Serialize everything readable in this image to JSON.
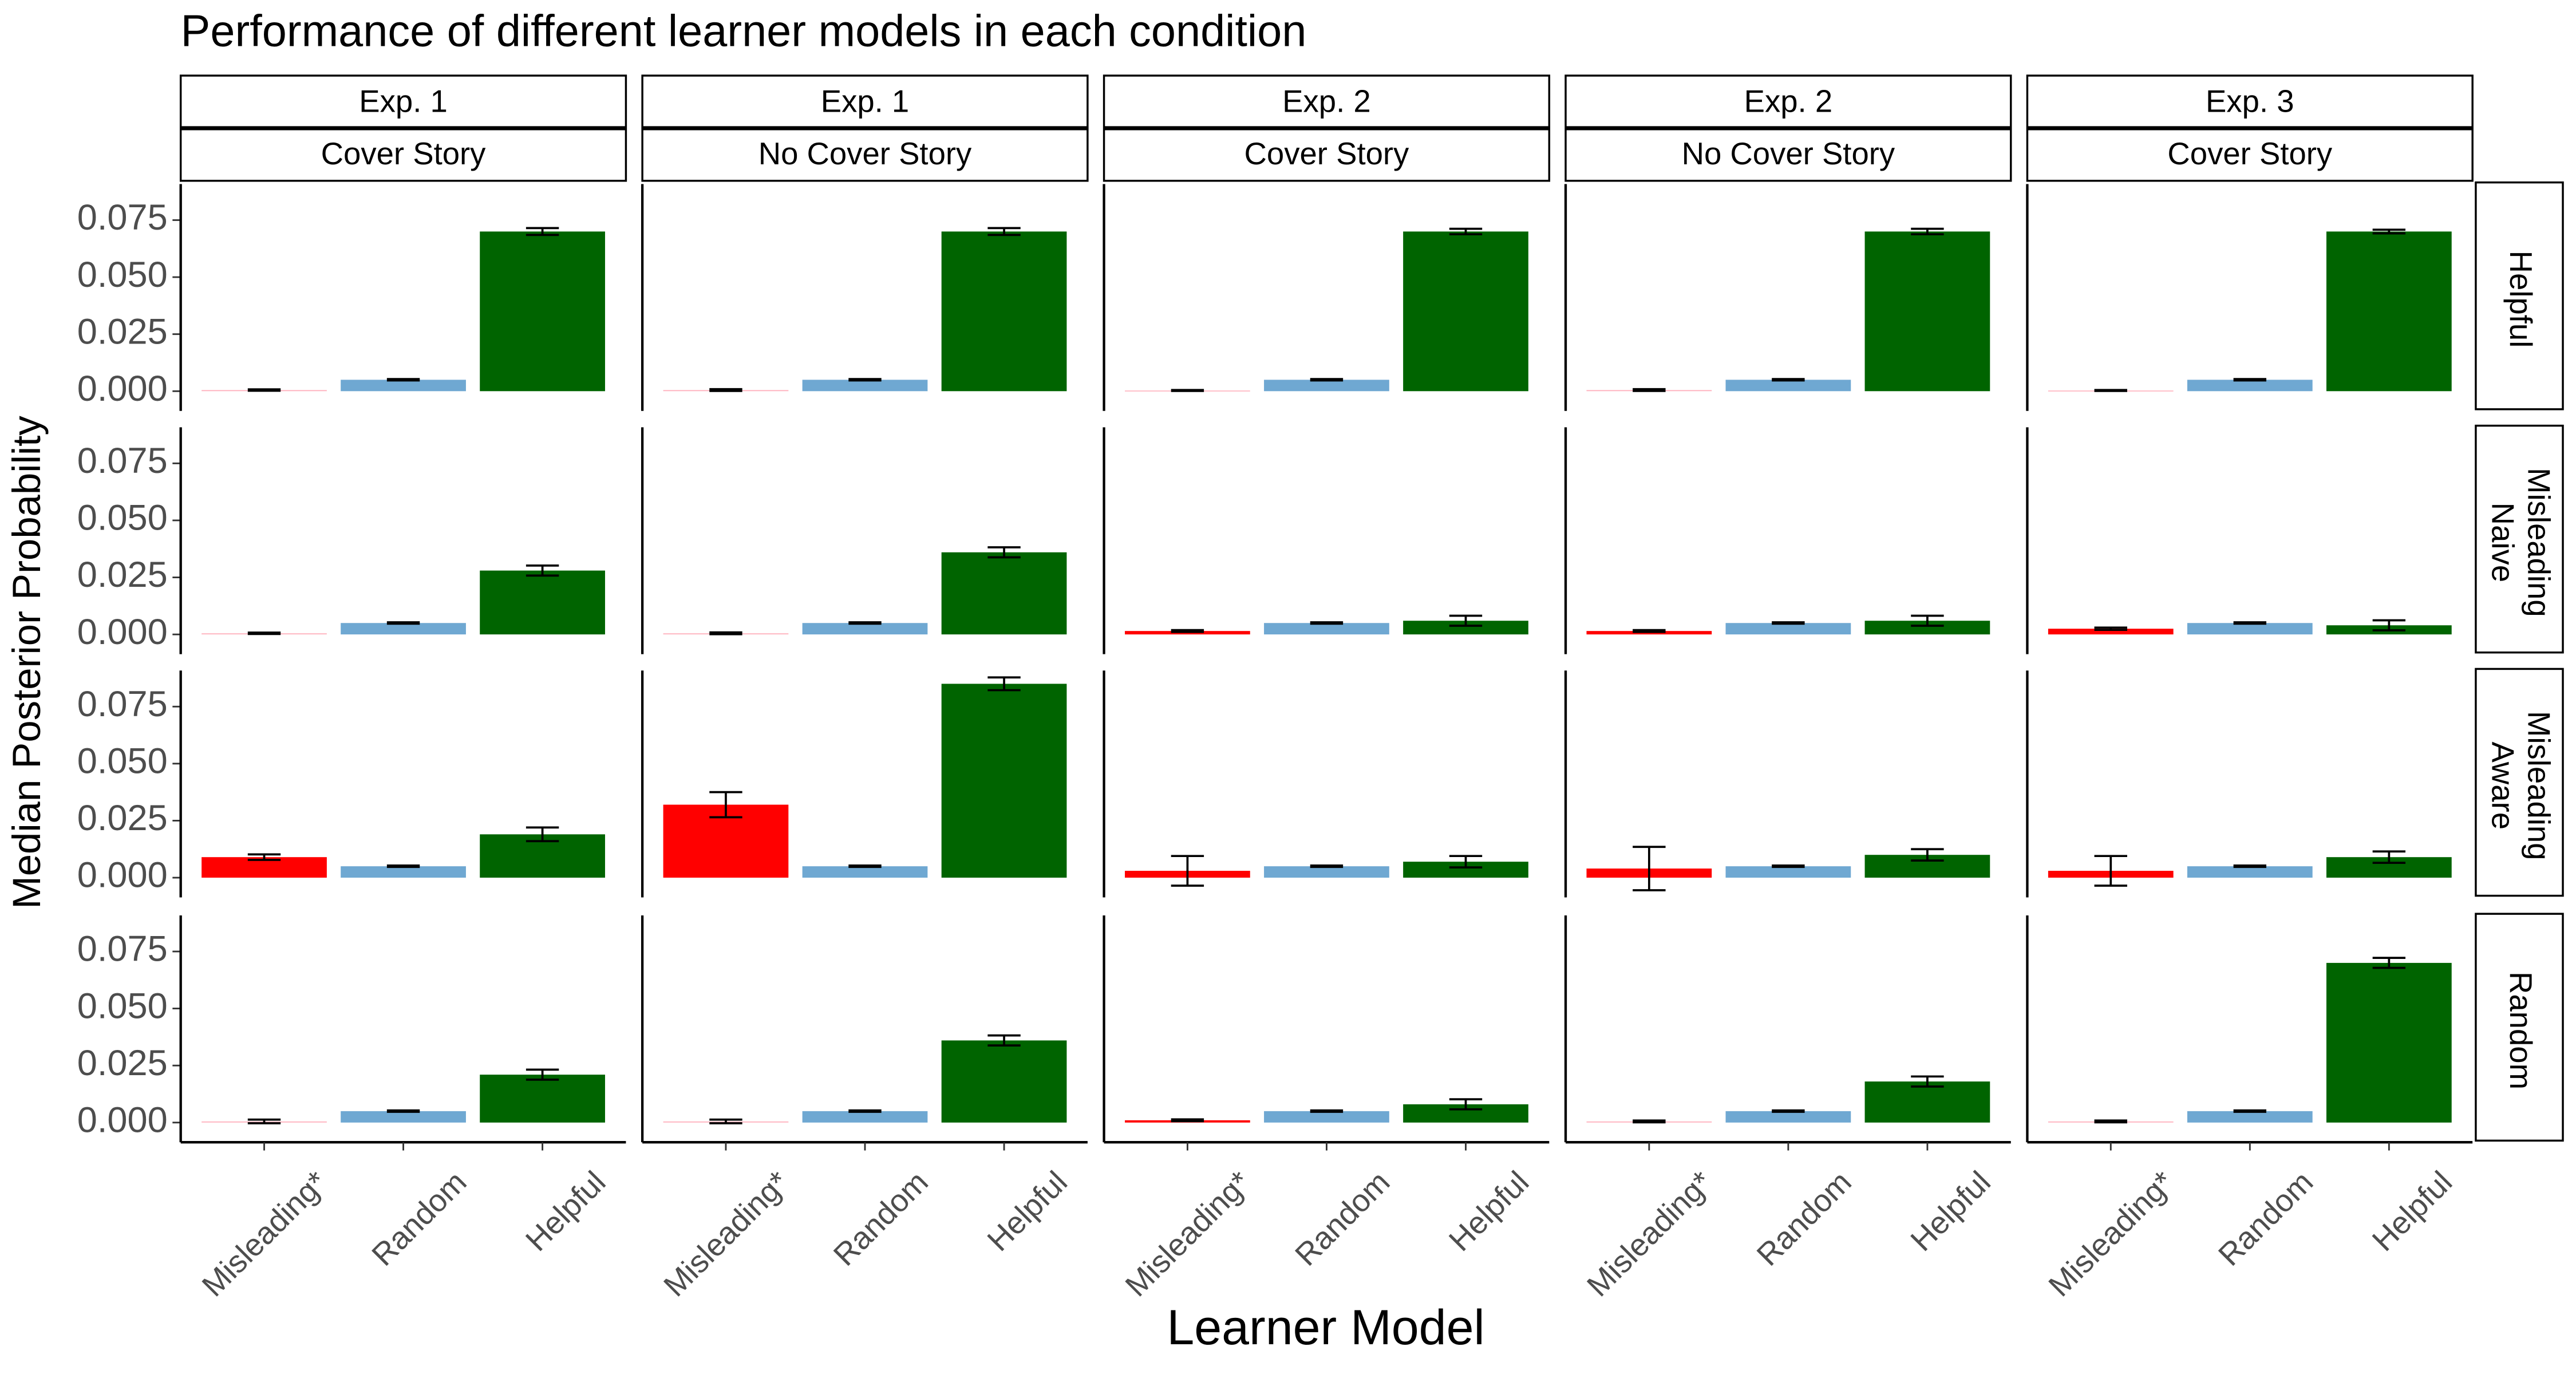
{
  "chart_data": {
    "type": "bar",
    "title": "Performance of different learner models in each condition",
    "xlabel": "Learner Model",
    "ylabel": "Median Posterior Probability",
    "categories": [
      "Misleading*",
      "Random",
      "Helpful"
    ],
    "colors": [
      "#ff0000",
      "#6fa8d2",
      "#006400"
    ],
    "faded_color": "#ffb6c1",
    "ylim": [
      -0.0072,
      0.0908
    ],
    "yticks": [
      {
        "value": 0,
        "label": "0.000"
      },
      {
        "value": 0.025,
        "label": "0.025"
      },
      {
        "value": 0.05,
        "label": "0.050"
      },
      {
        "value": 0.075,
        "label": "0.075"
      }
    ],
    "column_facets": [
      {
        "experiment": "Exp. 1",
        "condition": "Cover Story"
      },
      {
        "experiment": "Exp. 1",
        "condition": "No Cover Story"
      },
      {
        "experiment": "Exp. 2",
        "condition": "Cover Story"
      },
      {
        "experiment": "Exp. 2",
        "condition": "No Cover Story"
      },
      {
        "experiment": "Exp. 3",
        "condition": "Cover Story"
      }
    ],
    "row_facets": [
      [
        "Helpful"
      ],
      [
        "Misleading",
        "Naive"
      ],
      [
        "Misleading",
        "Aware"
      ],
      [
        "Random"
      ]
    ],
    "panels": [
      [
        {
          "values": [
            0.0005,
            0.005,
            0.07
          ],
          "errors": [
            0.0003,
            0.0003,
            0.0015
          ],
          "faded": true
        },
        {
          "values": [
            0.0005,
            0.005,
            0.07
          ],
          "errors": [
            0.0004,
            0.0003,
            0.0015
          ],
          "faded": true
        },
        {
          "values": [
            0.0003,
            0.005,
            0.07
          ],
          "errors": [
            0.0002,
            0.0003,
            0.0012
          ],
          "faded": true
        },
        {
          "values": [
            0.0005,
            0.005,
            0.07
          ],
          "errors": [
            0.0004,
            0.0003,
            0.0012
          ],
          "faded": true
        },
        {
          "values": [
            0.0003,
            0.005,
            0.07
          ],
          "errors": [
            0.0002,
            0.0003,
            0.0008
          ],
          "faded": true
        }
      ],
      [
        {
          "values": [
            0.0005,
            0.005,
            0.028
          ],
          "errors": [
            0.0003,
            0.0003,
            0.0022
          ],
          "faded": true
        },
        {
          "values": [
            0.0005,
            0.005,
            0.036
          ],
          "errors": [
            0.0004,
            0.0003,
            0.0022
          ],
          "faded": true
        },
        {
          "values": [
            0.0015,
            0.005,
            0.006
          ],
          "errors": [
            0.0004,
            0.0003,
            0.0022
          ],
          "faded": false
        },
        {
          "values": [
            0.0015,
            0.005,
            0.006
          ],
          "errors": [
            0.0004,
            0.0003,
            0.0022
          ],
          "faded": false
        },
        {
          "values": [
            0.0025,
            0.005,
            0.004
          ],
          "errors": [
            0.0005,
            0.0003,
            0.0022
          ],
          "faded": false
        }
      ],
      [
        {
          "values": [
            0.009,
            0.005,
            0.019
          ],
          "errors": [
            0.0012,
            0.0003,
            0.003
          ],
          "faded": false
        },
        {
          "values": [
            0.032,
            0.005,
            0.085
          ],
          "errors": [
            0.0055,
            0.0003,
            0.0028
          ],
          "faded": false
        },
        {
          "values": [
            0.003,
            0.005,
            0.007
          ],
          "errors": [
            0.0065,
            0.0003,
            0.0025
          ],
          "faded": false
        },
        {
          "values": [
            0.004,
            0.005,
            0.01
          ],
          "errors": [
            0.0095,
            0.0003,
            0.0025
          ],
          "faded": false
        },
        {
          "values": [
            0.003,
            0.005,
            0.009
          ],
          "errors": [
            0.0065,
            0.0003,
            0.0025
          ],
          "faded": false
        }
      ],
      [
        {
          "values": [
            0.0005,
            0.005,
            0.021
          ],
          "errors": [
            0.0008,
            0.0003,
            0.0022
          ],
          "faded": true
        },
        {
          "values": [
            0.0005,
            0.005,
            0.036
          ],
          "errors": [
            0.0008,
            0.0003,
            0.0022
          ],
          "faded": true
        },
        {
          "values": [
            0.001,
            0.005,
            0.008
          ],
          "errors": [
            0.0004,
            0.0003,
            0.0022
          ],
          "faded": false
        },
        {
          "values": [
            0.0005,
            0.005,
            0.018
          ],
          "errors": [
            0.0004,
            0.0003,
            0.0022
          ],
          "faded": true
        },
        {
          "values": [
            0.0005,
            0.005,
            0.07
          ],
          "errors": [
            0.0004,
            0.0003,
            0.0022
          ],
          "faded": true
        }
      ]
    ]
  }
}
